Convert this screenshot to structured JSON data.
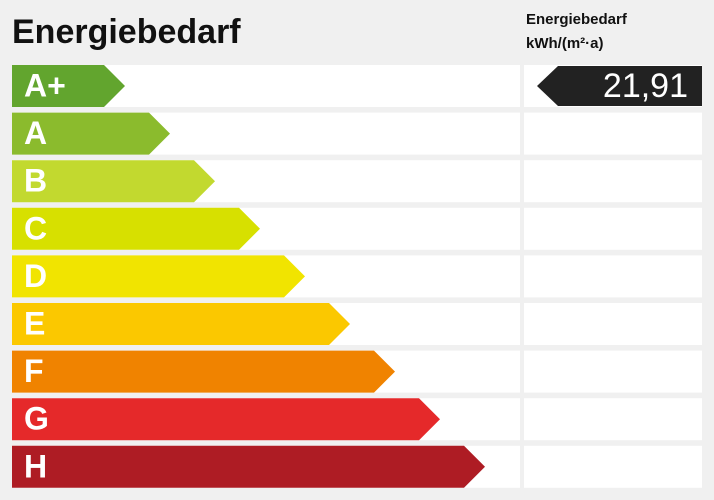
{
  "header": {
    "title": "Energiebedarf",
    "unit_label": "Energiebedarf",
    "unit": "kWh/(m²·a)"
  },
  "classes": [
    {
      "label": "A+",
      "color": "#62a52e",
      "value": "21,91"
    },
    {
      "label": "A",
      "color": "#8bbb2d"
    },
    {
      "label": "B",
      "color": "#c2d92f"
    },
    {
      "label": "C",
      "color": "#d7e000"
    },
    {
      "label": "D",
      "color": "#f1e400"
    },
    {
      "label": "E",
      "color": "#fbc800"
    },
    {
      "label": "F",
      "color": "#f08300"
    },
    {
      "label": "G",
      "color": "#e5292a"
    },
    {
      "label": "H",
      "color": "#ae1c24"
    }
  ]
}
